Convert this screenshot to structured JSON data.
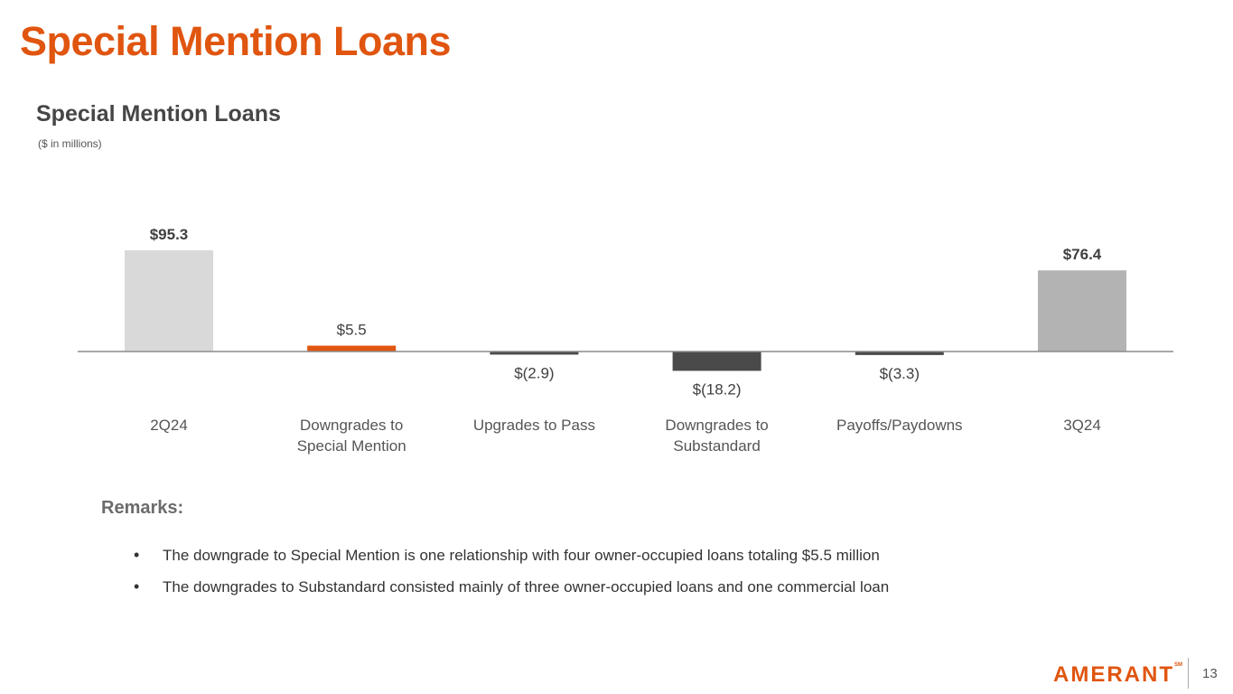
{
  "slide": {
    "title": "Special Mention Loans",
    "page_number": "13",
    "logo_text": "AMERANT",
    "logo_mark": "SM"
  },
  "remarks": {
    "title": "Remarks:",
    "items": [
      "The downgrade to Special Mention is one relationship with four owner-occupied loans totaling $5.5 million",
      "The downgrades to Substandard consisted mainly of three owner-occupied loans and one commercial loan"
    ]
  },
  "chart_data": {
    "type": "bar",
    "title": "Special Mention Loans",
    "subtitle": "($ in millions)",
    "categories": [
      [
        "2Q24"
      ],
      [
        "Downgrades to",
        "Special Mention"
      ],
      [
        "Upgrades to Pass"
      ],
      [
        "Downgrades to",
        "Substandard"
      ],
      [
        "Payoffs/Paydowns"
      ],
      [
        "3Q24"
      ]
    ],
    "values": [
      95.3,
      5.5,
      -2.9,
      -18.2,
      -3.3,
      76.4
    ],
    "labels": [
      "$95.3",
      "$5.5",
      "$(2.9)",
      "$(18.2)",
      "$(3.3)",
      "$76.4"
    ],
    "label_bold": [
      true,
      false,
      false,
      false,
      false,
      true
    ],
    "colors": [
      "#d9d9d9",
      "#e0550f",
      "#4a4a4a",
      "#4a4a4a",
      "#4a4a4a",
      "#b3b3b3"
    ],
    "xlabel": "",
    "ylabel": "",
    "grid": false
  }
}
